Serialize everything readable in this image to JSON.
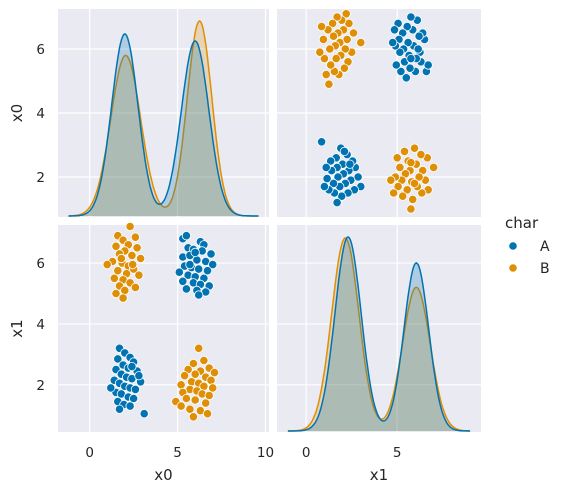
{
  "chart_data": {
    "type": "scatter",
    "kind": "pairplot",
    "variables": [
      "x0",
      "x1"
    ],
    "hue": "char",
    "legend": {
      "title": "char",
      "placement": "right",
      "entries": [
        {
          "label": "A",
          "color": "#0173b2"
        },
        {
          "label": "B",
          "color": "#de8f05"
        }
      ]
    },
    "background": "#eaeaf2",
    "grid": true,
    "axes": {
      "x0": {
        "range": [
          -1.8,
          10.2
        ],
        "ticks": [
          0,
          5,
          10
        ]
      },
      "x1": {
        "range": [
          0.75,
          7.25
        ],
        "ticks": [
          2,
          4,
          6
        ]
      }
    },
    "row_label_ticks": {
      "x0": [
        2,
        4,
        6
      ],
      "x1": [
        2,
        4,
        6
      ]
    },
    "col_label_ticks": {
      "x0": [
        0,
        5,
        10
      ],
      "x1": [
        0,
        5
      ]
    },
    "kde": {
      "x0": {
        "A": [
          {
            "mu": 2.0,
            "sigma": 0.75,
            "weight": 0.5
          },
          {
            "mu": 6.0,
            "sigma": 0.78,
            "weight": 0.5
          }
        ],
        "B": [
          {
            "mu": 2.05,
            "sigma": 0.85,
            "weight": 0.5
          },
          {
            "mu": 6.25,
            "sigma": 0.7,
            "weight": 0.5
          }
        ]
      },
      "x1": {
        "A": [
          {
            "mu": 2.3,
            "sigma": 0.72,
            "weight": 0.55
          },
          {
            "mu": 6.05,
            "sigma": 0.68,
            "weight": 0.45
          }
        ],
        "B": [
          {
            "mu": 2.15,
            "sigma": 0.75,
            "weight": 0.57
          },
          {
            "mu": 6.05,
            "sigma": 0.76,
            "weight": 0.43
          }
        ]
      }
    },
    "series": [
      {
        "name": "A",
        "color": "#0173b2",
        "points": [
          [
            5.3,
            6.8
          ],
          [
            5.5,
            6.9
          ],
          [
            6.3,
            6.7
          ],
          [
            6.5,
            6.6
          ],
          [
            5.6,
            6.5
          ],
          [
            5.9,
            6.45
          ],
          [
            6.4,
            6.4
          ],
          [
            6.9,
            6.3
          ],
          [
            5.3,
            6.2
          ],
          [
            5.7,
            6.25
          ],
          [
            6.1,
            6.1
          ],
          [
            6.6,
            6.05
          ],
          [
            7.0,
            5.95
          ],
          [
            5.4,
            5.9
          ],
          [
            5.8,
            5.85
          ],
          [
            6.2,
            5.8
          ],
          [
            6.7,
            5.75
          ],
          [
            5.1,
            5.7
          ],
          [
            5.6,
            5.6
          ],
          [
            6.0,
            5.55
          ],
          [
            6.5,
            5.5
          ],
          [
            5.3,
            5.4
          ],
          [
            5.9,
            5.35
          ],
          [
            6.3,
            5.3
          ],
          [
            6.8,
            5.25
          ],
          [
            5.5,
            5.15
          ],
          [
            6.1,
            5.1
          ],
          [
            6.6,
            5.05
          ],
          [
            6.2,
            4.95
          ],
          [
            5.7,
            5.95
          ],
          [
            6.0,
            6.35
          ],
          [
            1.7,
            3.2
          ],
          [
            2.0,
            3.05
          ],
          [
            2.3,
            2.9
          ],
          [
            1.6,
            2.85
          ],
          [
            2.5,
            2.75
          ],
          [
            1.9,
            2.65
          ],
          [
            2.2,
            2.55
          ],
          [
            1.5,
            2.5
          ],
          [
            2.7,
            2.45
          ],
          [
            1.8,
            2.35
          ],
          [
            2.1,
            2.25
          ],
          [
            2.4,
            2.2
          ],
          [
            1.4,
            2.15
          ],
          [
            2.9,
            2.1
          ],
          [
            1.7,
            2.05
          ],
          [
            2.0,
            1.95
          ],
          [
            2.3,
            1.9
          ],
          [
            2.6,
            1.85
          ],
          [
            1.5,
            1.75
          ],
          [
            1.8,
            1.7
          ],
          [
            2.2,
            1.6
          ],
          [
            2.5,
            1.55
          ],
          [
            1.6,
            1.45
          ],
          [
            1.95,
            1.35
          ],
          [
            2.3,
            1.3
          ],
          [
            1.7,
            1.2
          ],
          [
            3.1,
            1.05
          ],
          [
            2.4,
            2.6
          ],
          [
            1.2,
            1.9
          ],
          [
            2.8,
            2.3
          ]
        ]
      },
      {
        "name": "B",
        "color": "#de8f05",
        "points": [
          [
            2.3,
            7.2
          ],
          [
            1.6,
            6.9
          ],
          [
            2.6,
            6.85
          ],
          [
            1.9,
            6.75
          ],
          [
            2.2,
            6.6
          ],
          [
            1.5,
            6.55
          ],
          [
            2.7,
            6.5
          ],
          [
            2.0,
            6.4
          ],
          [
            1.7,
            6.3
          ],
          [
            2.4,
            6.25
          ],
          [
            2.9,
            6.15
          ],
          [
            1.3,
            6.05
          ],
          [
            1.85,
            6.0
          ],
          [
            2.2,
            5.9
          ],
          [
            1.0,
            5.95
          ],
          [
            2.5,
            5.8
          ],
          [
            1.6,
            5.75
          ],
          [
            2.1,
            5.65
          ],
          [
            2.8,
            5.6
          ],
          [
            1.4,
            5.5
          ],
          [
            1.9,
            5.45
          ],
          [
            2.3,
            5.35
          ],
          [
            1.7,
            5.25
          ],
          [
            2.6,
            5.2
          ],
          [
            2.0,
            5.1
          ],
          [
            1.5,
            5.0
          ],
          [
            1.9,
            4.85
          ],
          [
            1.8,
            6.15
          ],
          [
            2.45,
            5.95
          ],
          [
            6.2,
            3.2
          ],
          [
            6.5,
            2.8
          ],
          [
            5.9,
            2.7
          ],
          [
            6.8,
            2.55
          ],
          [
            5.6,
            2.5
          ],
          [
            6.3,
            2.45
          ],
          [
            7.1,
            2.4
          ],
          [
            6.0,
            2.35
          ],
          [
            5.4,
            2.3
          ],
          [
            6.6,
            2.25
          ],
          [
            6.9,
            2.15
          ],
          [
            5.8,
            2.1
          ],
          [
            6.2,
            2.05
          ],
          [
            5.2,
            2.0
          ],
          [
            6.5,
            1.95
          ],
          [
            7.0,
            1.9
          ],
          [
            5.7,
            1.85
          ],
          [
            6.1,
            1.8
          ],
          [
            5.3,
            1.75
          ],
          [
            6.4,
            1.7
          ],
          [
            6.8,
            1.65
          ],
          [
            5.5,
            1.55
          ],
          [
            6.0,
            1.5
          ],
          [
            4.9,
            1.45
          ],
          [
            6.6,
            1.4
          ],
          [
            5.2,
            1.3
          ],
          [
            5.7,
            1.2
          ],
          [
            6.3,
            1.15
          ],
          [
            6.7,
            1.05
          ],
          [
            5.9,
            0.95
          ]
        ]
      }
    ]
  }
}
